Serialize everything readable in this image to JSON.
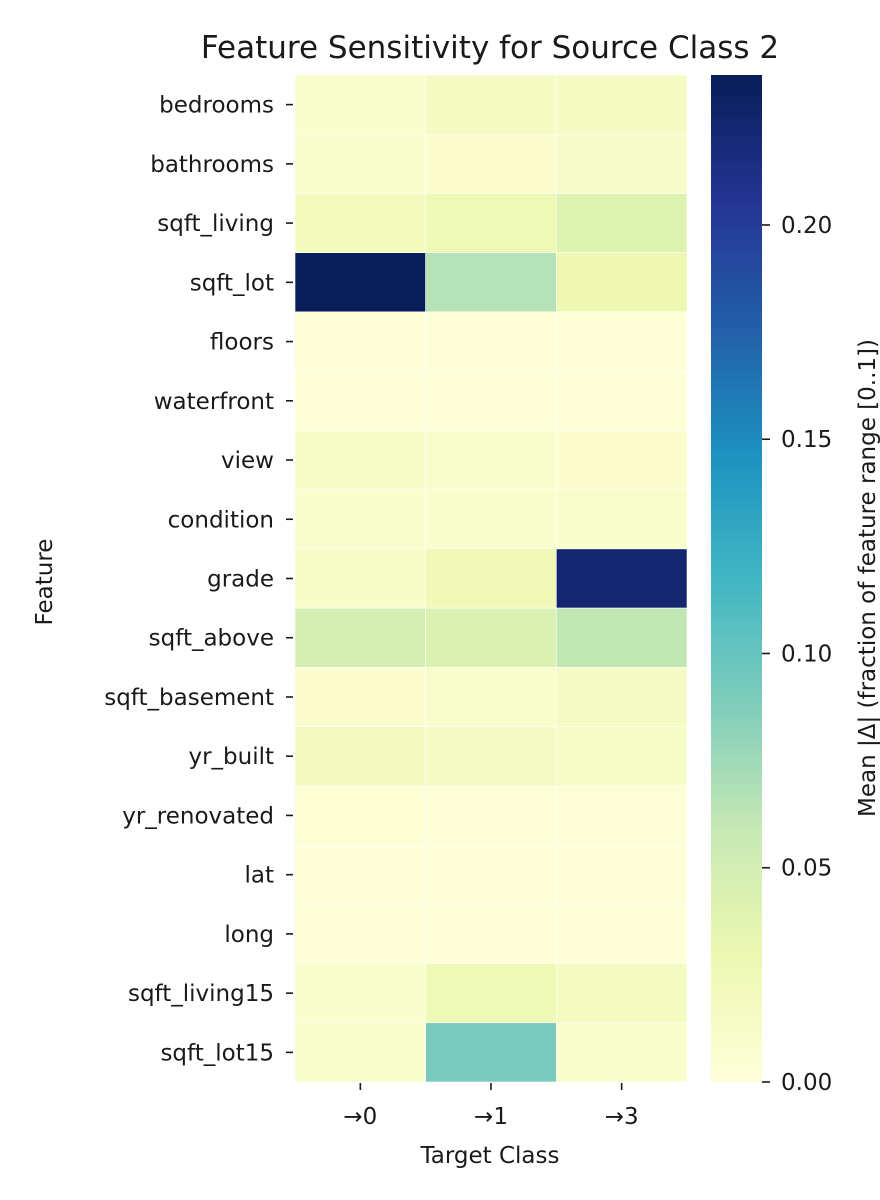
{
  "chart_data": {
    "type": "heatmap",
    "title": "Feature Sensitivity for Source Class 2",
    "xlabel": "Target Class",
    "ylabel": "Feature",
    "x_categories": [
      "→0",
      "→1",
      "→3"
    ],
    "y_categories": [
      "bedrooms",
      "bathrooms",
      "sqft_living",
      "sqft_lot",
      "floors",
      "waterfront",
      "view",
      "condition",
      "grade",
      "sqft_above",
      "sqft_basement",
      "yr_built",
      "yr_renovated",
      "lat",
      "long",
      "sqft_living15",
      "sqft_lot15"
    ],
    "values": [
      [
        0.008,
        0.016,
        0.016
      ],
      [
        0.008,
        0.007,
        0.011
      ],
      [
        0.02,
        0.026,
        0.041
      ],
      [
        0.234,
        0.066,
        0.028
      ],
      [
        0.002,
        0.003,
        0.002
      ],
      [
        0.001,
        0.001,
        0.002
      ],
      [
        0.012,
        0.01,
        0.007
      ],
      [
        0.008,
        0.008,
        0.009
      ],
      [
        0.012,
        0.024,
        0.224
      ],
      [
        0.049,
        0.043,
        0.061
      ],
      [
        0.007,
        0.01,
        0.015
      ],
      [
        0.019,
        0.015,
        0.014
      ],
      [
        0.004,
        0.003,
        0.003
      ],
      [
        0.002,
        0.002,
        0.002
      ],
      [
        0.002,
        0.001,
        0.001
      ],
      [
        0.008,
        0.026,
        0.018
      ],
      [
        0.01,
        0.092,
        0.01
      ]
    ],
    "colorbar": {
      "label": "Mean |Δ| (fraction of feature range [0..1])",
      "min": 0.0,
      "max": 0.235,
      "ticks": [
        "0.00",
        "0.05",
        "0.10",
        "0.15",
        "0.20"
      ],
      "colormap": "YlGnBu"
    },
    "grid": false
  }
}
